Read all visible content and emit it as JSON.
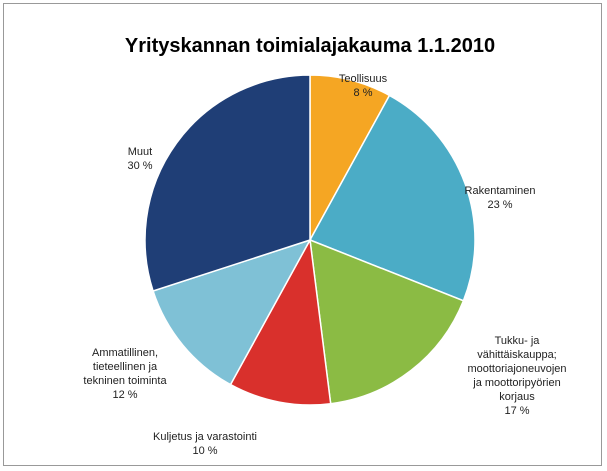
{
  "chart_data": {
    "type": "pie",
    "title": "Yrityskannan toimialajakauma 1.1.2010",
    "categories": [
      "Teollisuus",
      "Rakentaminen",
      "Tukku- ja\nvähittäiskauppa;\nmoottoriajoneuvojen\nja moottoripyörien\nkorjaus",
      "Kuljetus ja varastointi",
      "Ammatillinen,\ntieteellinen ja\ntekninen toiminta",
      "Muut"
    ],
    "values": [
      8,
      23,
      17,
      10,
      12,
      30
    ],
    "value_labels": [
      "8 %",
      "23 %",
      "17 %",
      "10 %",
      "12 %",
      "30 %"
    ],
    "colors": [
      "#f5a623",
      "#4bacc6",
      "#8bbb44",
      "#d9302c",
      "#7fc1d6",
      "#1f3e76"
    ]
  }
}
